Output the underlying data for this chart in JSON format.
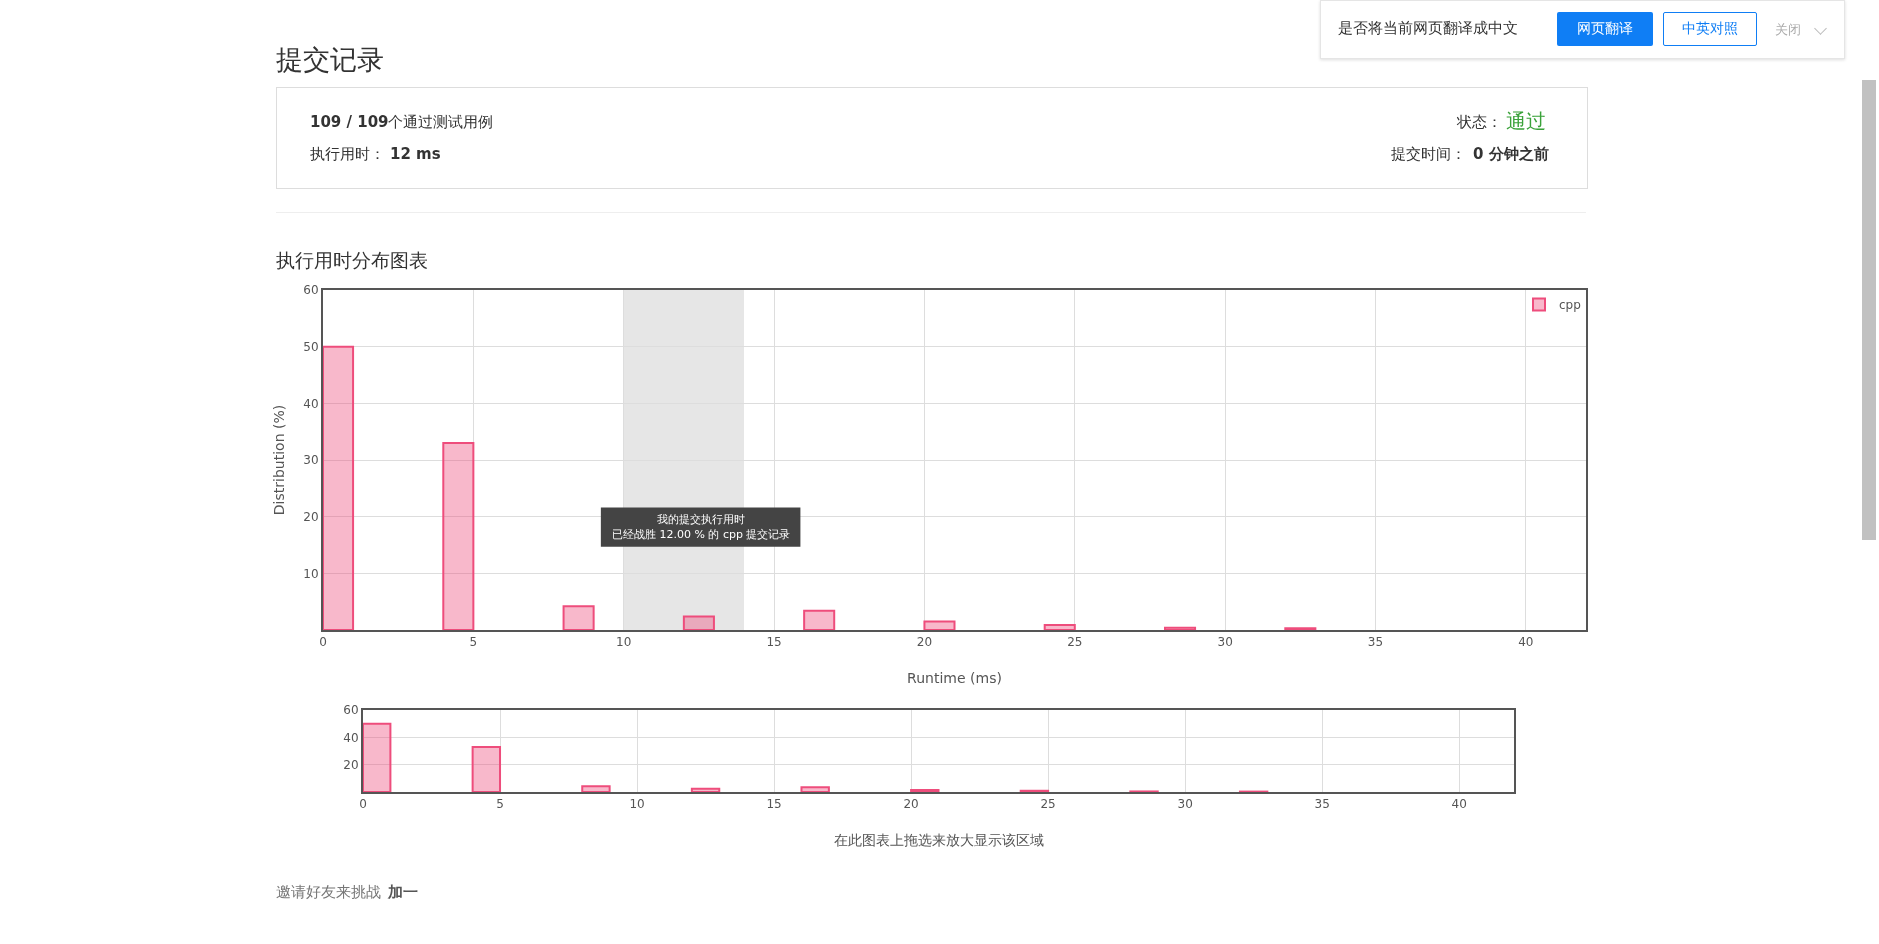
{
  "chart_data": [
    {
      "type": "other",
      "title": "提交记录",
      "annotations": [
        "109 / 109",
        "个通过测试用例",
        "执行用时：",
        "12 ms",
        "状态：",
        "通过",
        "提交时间：",
        "0 分钟之前",
        "邀请好友来挑战",
        "加一",
        "是否将当前网页翻译成中文",
        "网页翻译",
        "中英对照",
        "关闭"
      ]
    },
    {
      "type": "bar",
      "title": "执行用时分布图表",
      "xlabel": "Runtime (ms)",
      "ylabel": "Distribution (%)",
      "x": [
        0.5,
        4.5,
        8.5,
        12.5,
        16.5,
        20.5,
        24.5,
        28.5,
        32.5
      ],
      "series": [
        {
          "name": "cpp",
          "color": "#ee4d7c",
          "values": [
            50,
            33,
            4.2,
            2.4,
            3.4,
            1.5,
            0.9,
            0.4,
            0.3
          ]
        }
      ],
      "xlim": [
        0,
        42
      ],
      "xticks": [
        0,
        5,
        10,
        15,
        20,
        25,
        30,
        35,
        40
      ],
      "ylim": [
        0,
        60
      ],
      "yticks": [
        10,
        20,
        30,
        40,
        50,
        60
      ],
      "bands": [
        {
          "axis": "x",
          "from": 10,
          "to": 14,
          "color": "#e6e6e6"
        }
      ],
      "annotations": [
        "我的提交执行用时",
        "已经战胜 12.00 % 的 cpp 提交记录"
      ],
      "grid": true,
      "legend": "top right"
    },
    {
      "type": "bar",
      "xlabel": "在此图表上拖选来放大显示该区域",
      "x": [
        0.5,
        4.5,
        8.5,
        12.5,
        16.5,
        20.5,
        24.5,
        28.5,
        32.5
      ],
      "series": [
        {
          "color": "#ee4d7c",
          "values": [
            50,
            33,
            4.2,
            2.4,
            3.4,
            1.5,
            0.9,
            0.4,
            0.3
          ]
        }
      ],
      "xlim": [
        0,
        42
      ],
      "xticks": [
        0,
        5,
        10,
        15,
        20,
        25,
        30,
        35,
        40
      ],
      "ylim": [
        0,
        60
      ],
      "yticks": [
        20,
        40,
        60
      ],
      "grid": true
    }
  ]
}
